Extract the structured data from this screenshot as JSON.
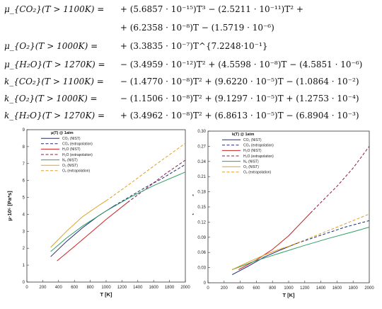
{
  "equations": [
    {
      "lhs": "μ_{CO₂}(T > 1100K) =",
      "rhs": "+ (5.6857 · 10⁻¹⁵)T³ − (2.5211 · 10⁻¹¹)T² +"
    },
    {
      "lhs": "",
      "rhs": "+ (6.2358 · 10⁻⁸)T − (1.5719 · 10⁻⁶)"
    },
    {
      "lhs": "μ_{O₂}(T > 1000K) =",
      "rhs": "+ (3.3835 · 10⁻⁷)T^{7.2248·10⁻¹}"
    },
    {
      "lhs": "μ_{H₂O}(T > 1270K) =",
      "rhs": "− (3.4959 · 10⁻¹²)T² + (4.5598 · 10⁻⁸)T − (4.5851 · 10⁻⁶)"
    },
    {
      "lhs": "k_{CO₂}(T > 1100K) =",
      "rhs": "− (1.4770 · 10⁻⁸)T² + (9.6220 · 10⁻⁵)T − (1.0864 · 10⁻²)"
    },
    {
      "lhs": "k_{O₂}(T > 1000K) =",
      "rhs": "− (1.1506 · 10⁻⁸)T² + (9.1297 · 10⁻⁵)T + (1.2753 · 10⁻⁴)"
    },
    {
      "lhs": "k_{H₂O}(T > 1270K) =",
      "rhs": "+ (3.4962 · 10⁻⁸)T² + (6.8613 · 10⁻⁵)T − (6.8904 · 10⁻³)"
    }
  ],
  "chart_data": [
    {
      "type": "line",
      "title": "μ(T) @ 1atm",
      "xlabel": "T [K]",
      "ylabel": "μ·10⁵ [Pa*s]",
      "xlim": [
        0,
        2000
      ],
      "ylim": [
        0,
        9
      ],
      "xticks": [
        0,
        200,
        400,
        600,
        800,
        1000,
        1200,
        1400,
        1600,
        1800,
        2000
      ],
      "yticks": [
        0,
        1,
        2,
        3,
        4,
        5,
        6,
        7,
        8,
        9
      ],
      "grid": false,
      "legend_position": "top-left",
      "series": [
        {
          "name": "CO₂ (NIST)",
          "color": "#1f2a7a",
          "dash": false,
          "points": [
            [
              300,
              1.5
            ],
            [
              500,
              2.4
            ],
            [
              700,
              3.2
            ],
            [
              900,
              3.9
            ],
            [
              1100,
              4.5
            ]
          ]
        },
        {
          "name": "CO₂ (extrapolation)",
          "color": "#1f2a7a",
          "dash": true,
          "points": [
            [
              1100,
              4.5
            ],
            [
              1300,
              5.05
            ],
            [
              1500,
              5.6
            ],
            [
              1700,
              6.1
            ],
            [
              2000,
              6.95
            ]
          ]
        },
        {
          "name": "H₂O (NIST)",
          "color": "#cc2222",
          "dash": false,
          "points": [
            [
              380,
              1.25
            ],
            [
              600,
              2.1
            ],
            [
              800,
              2.9
            ],
            [
              1000,
              3.7
            ],
            [
              1270,
              4.7
            ]
          ]
        },
        {
          "name": "H₂O (extrapolation)",
          "color": "#8b1a4a",
          "dash": true,
          "points": [
            [
              1270,
              4.7
            ],
            [
              1500,
              5.5
            ],
            [
              1750,
              6.4
            ],
            [
              2000,
              7.2
            ]
          ]
        },
        {
          "name": "N₂ (NIST)",
          "color": "#2e9e63",
          "dash": false,
          "points": [
            [
              300,
              1.8
            ],
            [
              500,
              2.6
            ],
            [
              700,
              3.3
            ],
            [
              1000,
              4.2
            ],
            [
              1300,
              5.0
            ],
            [
              1600,
              5.7
            ],
            [
              2000,
              6.5
            ]
          ]
        },
        {
          "name": "O₂ (NIST)",
          "color": "#e0a020",
          "dash": false,
          "points": [
            [
              300,
              2.05
            ],
            [
              500,
              3.0
            ],
            [
              700,
              3.85
            ],
            [
              900,
              4.5
            ],
            [
              1000,
              4.8
            ]
          ]
        },
        {
          "name": "O₂ (extrapolation)",
          "color": "#e0a020",
          "dash": true,
          "points": [
            [
              1000,
              4.8
            ],
            [
              1300,
              5.8
            ],
            [
              1600,
              6.85
            ],
            [
              2000,
              8.2
            ]
          ]
        }
      ]
    },
    {
      "type": "line",
      "title": "k(T) @ 1atm",
      "xlabel": "T [K]",
      "ylabel": "k [W/m*K]",
      "xlim": [
        0,
        2000
      ],
      "ylim": [
        0,
        0.3
      ],
      "xticks": [
        0,
        200,
        400,
        600,
        800,
        1000,
        1200,
        1400,
        1600,
        1800,
        2000
      ],
      "yticks": [
        0,
        0.03,
        0.06,
        0.09,
        0.12,
        0.15,
        0.18,
        0.21,
        0.24,
        0.27,
        0.3
      ],
      "ytick_labels": [
        "0",
        "0.03",
        "0.06",
        "0.09",
        "0.12",
        "0.15",
        "0.18",
        "0.21",
        "0.24",
        "0.27",
        "0.30"
      ],
      "grid": false,
      "legend_position": "top-left",
      "series": [
        {
          "name": "CO₂ (NIST)",
          "color": "#1f2a7a",
          "dash": false,
          "points": [
            [
              300,
              0.016
            ],
            [
              500,
              0.033
            ],
            [
              700,
              0.051
            ],
            [
              900,
              0.065
            ],
            [
              1100,
              0.078
            ]
          ]
        },
        {
          "name": "CO₂ (extrapolation)",
          "color": "#1f2a7a",
          "dash": true,
          "points": [
            [
              1100,
              0.078
            ],
            [
              1400,
              0.094
            ],
            [
              1700,
              0.11
            ],
            [
              2000,
              0.123
            ]
          ]
        },
        {
          "name": "H₂O (NIST)",
          "color": "#cc2222",
          "dash": false,
          "points": [
            [
              380,
              0.026
            ],
            [
              600,
              0.045
            ],
            [
              800,
              0.066
            ],
            [
              1000,
              0.093
            ],
            [
              1270,
              0.138
            ]
          ]
        },
        {
          "name": "H₂O (extrapolation)",
          "color": "#8b1a4a",
          "dash": true,
          "points": [
            [
              1270,
              0.138
            ],
            [
              1450,
              0.167
            ],
            [
              1600,
              0.191
            ],
            [
              1800,
              0.227
            ],
            [
              2000,
              0.27
            ]
          ]
        },
        {
          "name": "N₂ (NIST)",
          "color": "#2e9e63",
          "dash": false,
          "points": [
            [
              300,
              0.026
            ],
            [
              600,
              0.044
            ],
            [
              900,
              0.059
            ],
            [
              1200,
              0.074
            ],
            [
              1500,
              0.088
            ],
            [
              1800,
              0.101
            ],
            [
              2000,
              0.11
            ]
          ]
        },
        {
          "name": "O₂ (NIST)",
          "color": "#e0a020",
          "dash": false,
          "points": [
            [
              300,
              0.026
            ],
            [
              500,
              0.041
            ],
            [
              700,
              0.055
            ],
            [
              900,
              0.067
            ],
            [
              1000,
              0.072
            ]
          ]
        },
        {
          "name": "O₂ (extrapolation)",
          "color": "#e0a020",
          "dash": true,
          "points": [
            [
              1000,
              0.072
            ],
            [
              1300,
              0.091
            ],
            [
              1600,
              0.11
            ],
            [
              2000,
              0.136
            ]
          ]
        }
      ]
    }
  ]
}
